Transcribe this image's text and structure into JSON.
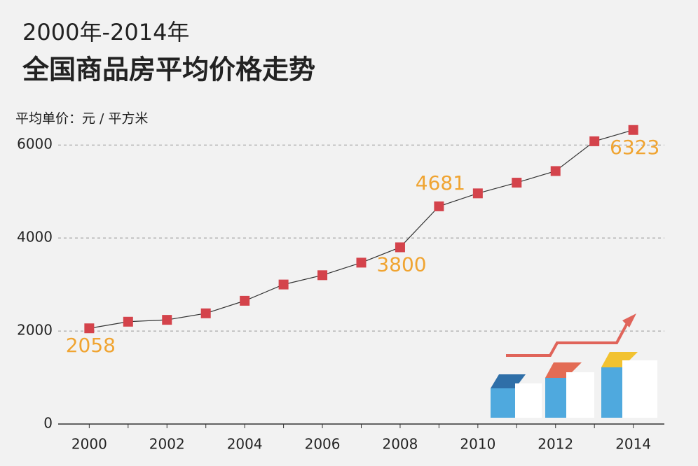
{
  "chart_data": {
    "type": "line",
    "subtitle": "2000年-2014年",
    "title": "全国商品房平均价格走势",
    "y_label": "平均单价：元 / 平方米",
    "x": [
      2000,
      2001,
      2002,
      2003,
      2004,
      2005,
      2006,
      2007,
      2008,
      2009,
      2010,
      2011,
      2012,
      2013,
      2014
    ],
    "values": [
      2058,
      2200,
      2240,
      2380,
      2650,
      3000,
      3200,
      3470,
      3800,
      4681,
      4960,
      5190,
      5440,
      6080,
      6323
    ],
    "value_labels": [
      "2058",
      null,
      null,
      null,
      null,
      null,
      null,
      null,
      "3800",
      "4681",
      null,
      null,
      null,
      null,
      "6323"
    ],
    "color": "#d4434b",
    "line_color": "#333333",
    "xlim": [
      1999.2,
      2014.8
    ],
    "xticks": [
      2000,
      2002,
      2004,
      2006,
      2008,
      2010,
      2012,
      2014
    ],
    "ylim": [
      0,
      6500
    ],
    "yticks": [
      0,
      2000,
      4000,
      6000
    ],
    "grid": true
  }
}
